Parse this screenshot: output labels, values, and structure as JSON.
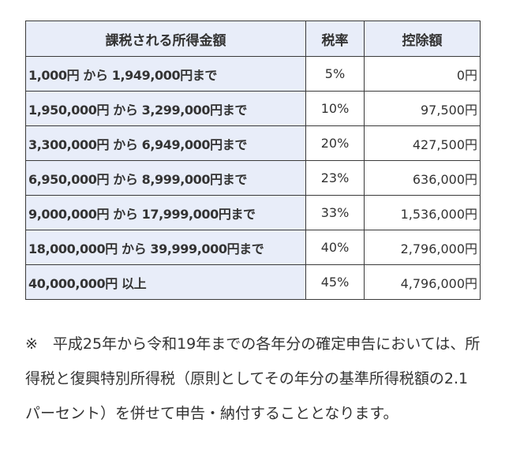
{
  "table": {
    "headers": {
      "income": "課税される所得金額",
      "rate": "税率",
      "deduction": "控除額"
    },
    "rows": [
      {
        "income": "1,000円 から 1,949,000円まで",
        "rate": "5%",
        "deduction": "0円"
      },
      {
        "income": "1,950,000円 から 3,299,000円まで",
        "rate": "10%",
        "deduction": "97,500円"
      },
      {
        "income": "3,300,000円 から 6,949,000円まで",
        "rate": "20%",
        "deduction": "427,500円"
      },
      {
        "income": "6,950,000円 から 8,999,000円まで",
        "rate": "23%",
        "deduction": "636,000円"
      },
      {
        "income": "9,000,000円 から 17,999,000円まで",
        "rate": "33%",
        "deduction": "1,536,000円"
      },
      {
        "income": "18,000,000円 から 39,999,000円まで",
        "rate": "40%",
        "deduction": "2,796,000円"
      },
      {
        "income": "40,000,000円 以上",
        "rate": "45%",
        "deduction": "4,796,000円"
      }
    ]
  },
  "note": "※　平成25年から令和19年までの各年分の確定申告においては、所得税と復興特別所得税（原則としてその年分の基準所得税額の2.1パーセント）を併せて申告・納付することとなります。"
}
